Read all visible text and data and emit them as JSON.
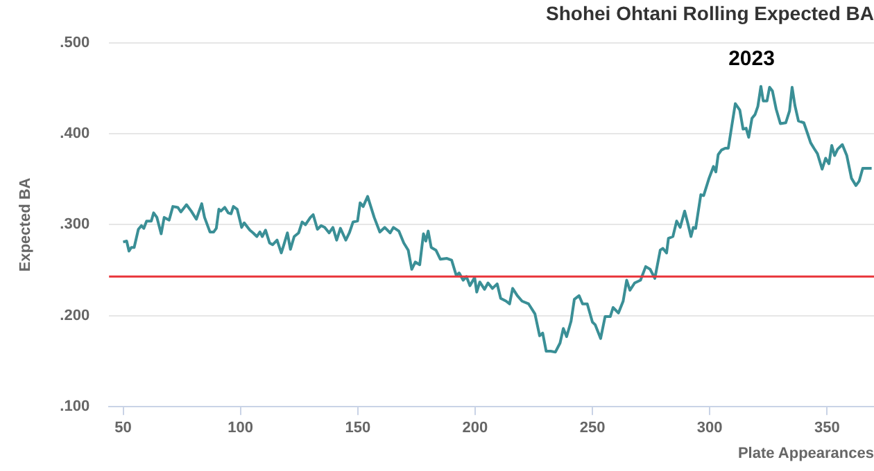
{
  "chart_data": {
    "type": "line",
    "title": "Shohei Ohtani Rolling Expected BA",
    "xlabel": "Plate Appearances",
    "ylabel": "Expected BA",
    "annotations": [
      "2023"
    ],
    "xlim": [
      44,
      370
    ],
    "xticks": [
      50,
      100,
      150,
      200,
      250,
      300,
      350
    ],
    "ylim": [
      0.1,
      0.5
    ],
    "yticks": [
      {
        "value": 0.1,
        "label": ".100"
      },
      {
        "value": 0.2,
        "label": ".200"
      },
      {
        "value": 0.3,
        "label": ".300"
      },
      {
        "value": 0.4,
        "label": ".400"
      },
      {
        "value": 0.5,
        "label": ".500"
      }
    ],
    "grid": "y",
    "ref_lines": [
      {
        "axis": "y",
        "value": 0.243,
        "color": "#e8343a"
      }
    ],
    "series": [
      {
        "color": "#3a8f96",
        "x": [
          50,
          51.5,
          52.5,
          53.5,
          54.7,
          56.5,
          57.8,
          58.8,
          60,
          62,
          63,
          64.4,
          66.2,
          67.5,
          69.6,
          71.2,
          73.3,
          74.6,
          77,
          79,
          81.2,
          83.5,
          84.7,
          87,
          88.6,
          89.7,
          90.8,
          91.7,
          93.3,
          94.8,
          96,
          97,
          98.6,
          100.5,
          101.6,
          104,
          105.4,
          107,
          108.3,
          109.3,
          110.7,
          112.4,
          113.7,
          115.6,
          117.4,
          118.5,
          120,
          121.3,
          122.9,
          124.8,
          126.3,
          127.7,
          129.8,
          131,
          132.8,
          134.4,
          135.9,
          137.8,
          139.4,
          141,
          142.6,
          144.9,
          146.4,
          148,
          149.9,
          151,
          152.3,
          154.2,
          157,
          159.4,
          161.5,
          163.8,
          165.2,
          167.5,
          169.6,
          171.5,
          173,
          174.5,
          176.4,
          178,
          179,
          180,
          181.3,
          183.3,
          185.2,
          188,
          190,
          192,
          193.2,
          194.9,
          196.3,
          197.8,
          199.8,
          200.7,
          202,
          204,
          205.5,
          207.4,
          209.4,
          210.9,
          213.2,
          214.7,
          216,
          218,
          220,
          222.8,
          225.5,
          227.5,
          228.8,
          230.3,
          232.2,
          234.2,
          236.2,
          237.6,
          239,
          240.9,
          242.3,
          244.3,
          245.8,
          247.8,
          250,
          251.2,
          253.5,
          255.4,
          257.6,
          258.8,
          261.1,
          263.1,
          264.6,
          266,
          268,
          270.5,
          272.7,
          274.6,
          276.6,
          278.9,
          280,
          281.6,
          282.4,
          284.3,
          285.9,
          287.4,
          289.3,
          290.7,
          292,
          293,
          294,
          296.2,
          297.4,
          299.7,
          301.6,
          302.6,
          303.6,
          305,
          306.6,
          307.9,
          309.3,
          310.9,
          312.8,
          314.2,
          315.5,
          316.6,
          318,
          319.3,
          320.5,
          321.8,
          322.8,
          324.4,
          325.5,
          326.7,
          328.3,
          330.1,
          332.4,
          334,
          335.1,
          336.3,
          337.8,
          340.1,
          341.7,
          343,
          344.4,
          345.9,
          347.9,
          349.4,
          350.8,
          352,
          353.2,
          354.5,
          356.5,
          358.4,
          360.4,
          362.3,
          363.7,
          365.2,
          369
        ],
        "values": [
          0.281,
          0.282,
          0.271,
          0.275,
          0.275,
          0.295,
          0.299,
          0.296,
          0.304,
          0.304,
          0.313,
          0.308,
          0.29,
          0.308,
          0.305,
          0.32,
          0.319,
          0.314,
          0.322,
          0.315,
          0.306,
          0.323,
          0.308,
          0.292,
          0.292,
          0.296,
          0.317,
          0.315,
          0.319,
          0.313,
          0.312,
          0.32,
          0.317,
          0.297,
          0.302,
          0.294,
          0.291,
          0.287,
          0.292,
          0.287,
          0.294,
          0.28,
          0.278,
          0.283,
          0.269,
          0.278,
          0.291,
          0.273,
          0.287,
          0.291,
          0.303,
          0.3,
          0.308,
          0.311,
          0.295,
          0.299,
          0.297,
          0.291,
          0.297,
          0.283,
          0.296,
          0.283,
          0.291,
          0.303,
          0.304,
          0.324,
          0.32,
          0.331,
          0.308,
          0.292,
          0.297,
          0.291,
          0.297,
          0.293,
          0.28,
          0.272,
          0.251,
          0.259,
          0.256,
          0.29,
          0.282,
          0.293,
          0.275,
          0.272,
          0.262,
          0.263,
          0.261,
          0.244,
          0.247,
          0.239,
          0.243,
          0.233,
          0.242,
          0.226,
          0.237,
          0.229,
          0.236,
          0.23,
          0.235,
          0.219,
          0.216,
          0.213,
          0.23,
          0.222,
          0.216,
          0.213,
          0.202,
          0.178,
          0.181,
          0.161,
          0.161,
          0.16,
          0.17,
          0.186,
          0.177,
          0.194,
          0.218,
          0.222,
          0.213,
          0.213,
          0.193,
          0.19,
          0.175,
          0.199,
          0.199,
          0.209,
          0.203,
          0.216,
          0.239,
          0.228,
          0.236,
          0.239,
          0.254,
          0.251,
          0.241,
          0.272,
          0.274,
          0.269,
          0.285,
          0.287,
          0.304,
          0.297,
          0.315,
          0.301,
          0.287,
          0.297,
          0.296,
          0.333,
          0.332,
          0.351,
          0.364,
          0.358,
          0.377,
          0.382,
          0.384,
          0.384,
          0.407,
          0.433,
          0.426,
          0.405,
          0.406,
          0.396,
          0.417,
          0.421,
          0.43,
          0.452,
          0.436,
          0.436,
          0.451,
          0.447,
          0.427,
          0.411,
          0.412,
          0.425,
          0.451,
          0.431,
          0.414,
          0.412,
          0.4,
          0.39,
          0.384,
          0.378,
          0.361,
          0.373,
          0.367,
          0.387,
          0.376,
          0.383,
          0.388,
          0.376,
          0.351,
          0.343,
          0.348,
          0.362,
          0.362
        ]
      }
    ]
  }
}
